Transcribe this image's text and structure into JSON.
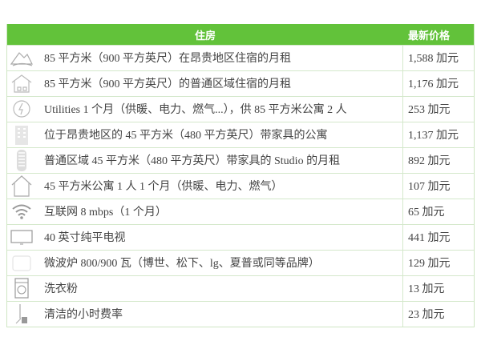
{
  "header": {
    "item": "住房",
    "price": "最新价格"
  },
  "rows": [
    {
      "icon": "mountain-house-icon",
      "item": "85 平方米（900 平方英尺）在昂贵地区住宿的月租",
      "price": "1,588 加元"
    },
    {
      "icon": "house-icon",
      "item": "85 平方米（900 平方英尺）的普通区域住宿的月租",
      "price": "1,176 加元"
    },
    {
      "icon": "utilities-icon",
      "item": "Utilities 1 个月（供暖、电力、燃气...），供 85 平方米公寓 2 人",
      "price": "253 加元"
    },
    {
      "icon": "apartment-building-icon",
      "item": "位于昂贵地区的 45 平方米（480 平方英尺）带家具的公寓",
      "price": "1,137 加元"
    },
    {
      "icon": "tower-building-icon",
      "item": "普通区域 45 平方米（480 平方英尺）带家具的 Studio 的月租",
      "price": "892 加元"
    },
    {
      "icon": "home-outline-icon",
      "item": "45 平方米公寓 1 人 1 个月（供暖、电力、燃气）",
      "price": "107 加元"
    },
    {
      "icon": "wifi-icon",
      "item": "互联网 8 mbps（1 个月）",
      "price": "65 加元"
    },
    {
      "icon": "tv-icon",
      "item": "40 英寸纯平电视",
      "price": "441 加元"
    },
    {
      "icon": "microwave-icon",
      "item": "微波炉 800/900 瓦（博世、松下、lg、夏普或同等品牌）",
      "price": "129 加元"
    },
    {
      "icon": "washing-machine-icon",
      "item": "洗衣粉",
      "price": "13 加元"
    },
    {
      "icon": "cleaning-icon",
      "item": "清洁的小时费率",
      "price": "23 加元"
    }
  ]
}
